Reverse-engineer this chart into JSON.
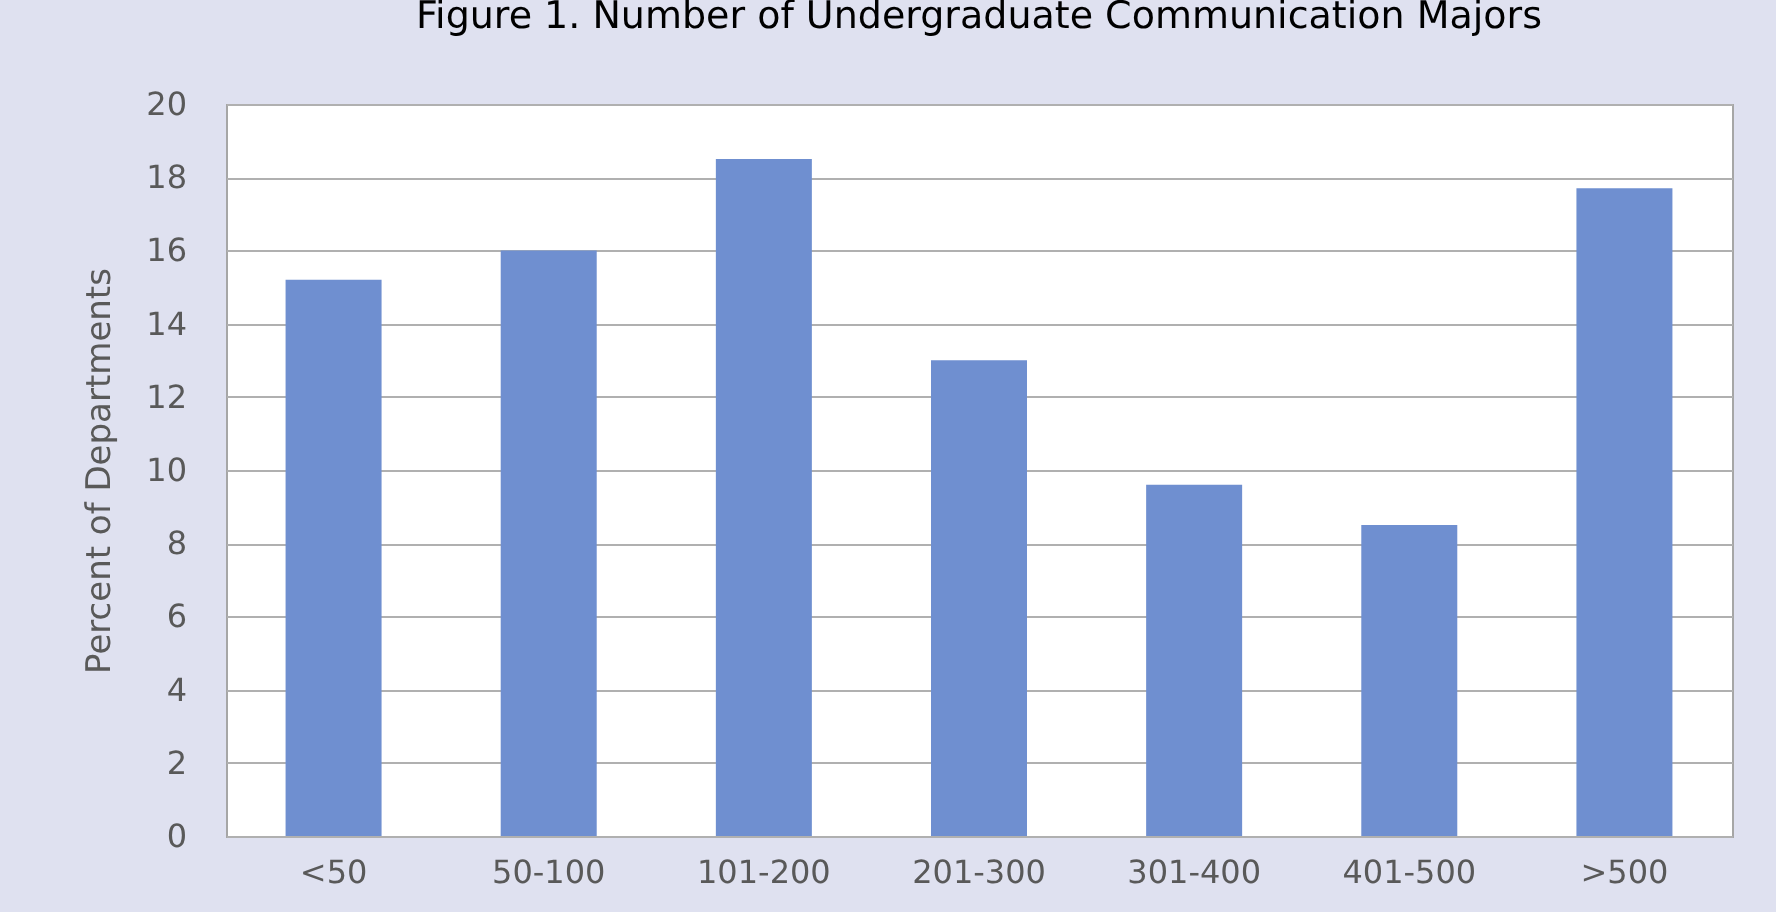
{
  "chart_data": {
    "type": "bar",
    "title": "Figure 1. Number of Undergraduate Communication Majors",
    "ylabel": "Percent of Departments",
    "categories": [
      "<50",
      "50-100",
      "101-200",
      "201-300",
      "301-400",
      "401-500",
      ">500"
    ],
    "values": [
      15.2,
      16.0,
      18.5,
      13.0,
      9.6,
      8.5,
      17.7
    ],
    "color": "#6f8fd0",
    "ylim": [
      0,
      20
    ],
    "yticks": [
      0,
      2,
      4,
      6,
      8,
      10,
      12,
      14,
      16,
      18,
      20
    ],
    "grid": "y"
  }
}
